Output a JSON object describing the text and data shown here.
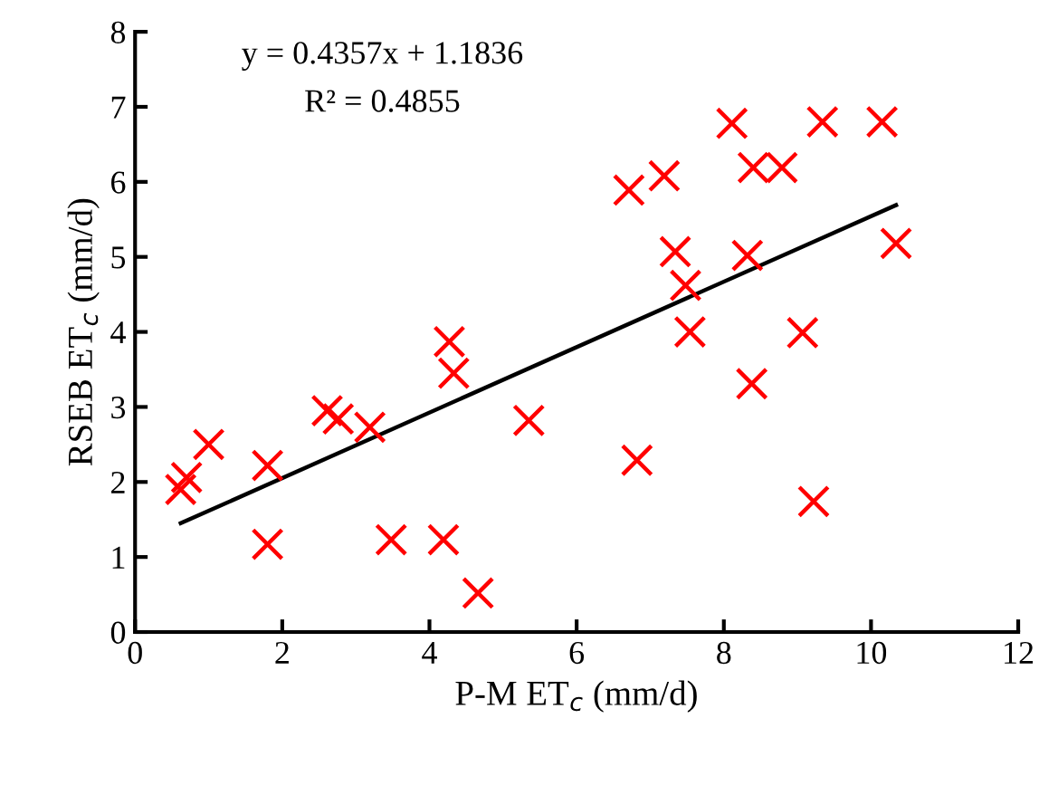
{
  "chart_data": {
    "type": "scatter",
    "xlabel": "P-M ET$_{c}$ (mm/d)",
    "ylabel": "RSEB ET$_{c}$ (mm/d)",
    "xlim": [
      0,
      12
    ],
    "ylim": [
      0,
      8
    ],
    "xticks": [
      0,
      2,
      4,
      6,
      8,
      10,
      12
    ],
    "yticks": [
      0,
      1,
      2,
      3,
      4,
      5,
      6,
      7,
      8
    ],
    "grid": false,
    "legend": false,
    "marker": "cross",
    "annotations": [
      "y = 0.4357x + 1.1836",
      "R² = 0.4855"
    ],
    "series": [
      {
        "color": "#ff0000",
        "x": [
          0.62,
          0.7,
          1.0,
          1.8,
          1.8,
          2.61,
          2.76,
          3.19,
          3.48,
          4.19,
          4.27,
          4.33,
          4.66,
          5.35,
          6.71,
          7.19,
          6.82,
          7.34,
          7.48,
          7.54,
          8.11,
          8.4,
          8.32,
          8.38,
          8.79,
          9.07,
          9.22,
          9.34,
          10.15,
          10.34
        ],
        "values": [
          1.9,
          2.06,
          2.5,
          2.22,
          1.17,
          2.95,
          2.84,
          2.73,
          1.23,
          1.23,
          3.87,
          3.45,
          0.52,
          2.82,
          5.89,
          6.08,
          2.29,
          5.07,
          4.62,
          4.0,
          6.78,
          6.19,
          5.02,
          3.31,
          6.19,
          3.99,
          1.74,
          6.8,
          6.8,
          5.18
        ]
      },
      {
        "type": "line",
        "color": "#000000",
        "marker": "none",
        "x": [
          0.62,
          10.34
        ],
        "values": [
          1.45,
          5.69
        ]
      }
    ]
  }
}
